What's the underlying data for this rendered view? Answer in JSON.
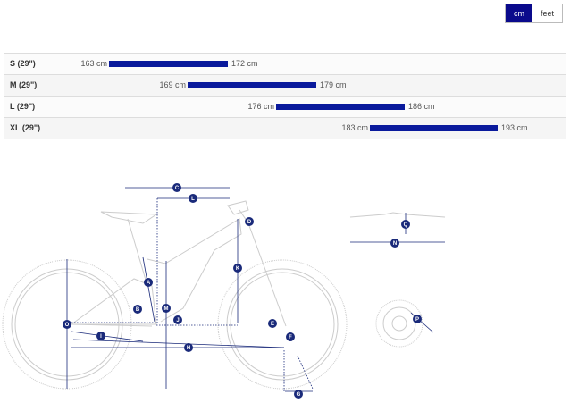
{
  "units": {
    "options": [
      "cm",
      "feet"
    ],
    "selected": "cm"
  },
  "sizes": [
    {
      "label": "S (29\")",
      "min": "163 cm",
      "max": "172 cm",
      "min_cm": 163,
      "max_cm": 172
    },
    {
      "label": "M (29\")",
      "min": "169 cm",
      "max": "179 cm",
      "min_cm": 169,
      "max_cm": 179
    },
    {
      "label": "L (29\")",
      "min": "176 cm",
      "max": "186 cm",
      "min_cm": 176,
      "max_cm": 186
    },
    {
      "label": "XL (29\")",
      "min": "183 cm",
      "max": "193 cm",
      "min_cm": 183,
      "max_cm": 193
    }
  ],
  "bar_color": "#0a1a9c",
  "geometry_labels": [
    "A",
    "B",
    "C",
    "D",
    "E",
    "F",
    "G",
    "H",
    "I",
    "J",
    "K",
    "L",
    "M",
    "O",
    "N",
    "Q",
    "P"
  ]
}
